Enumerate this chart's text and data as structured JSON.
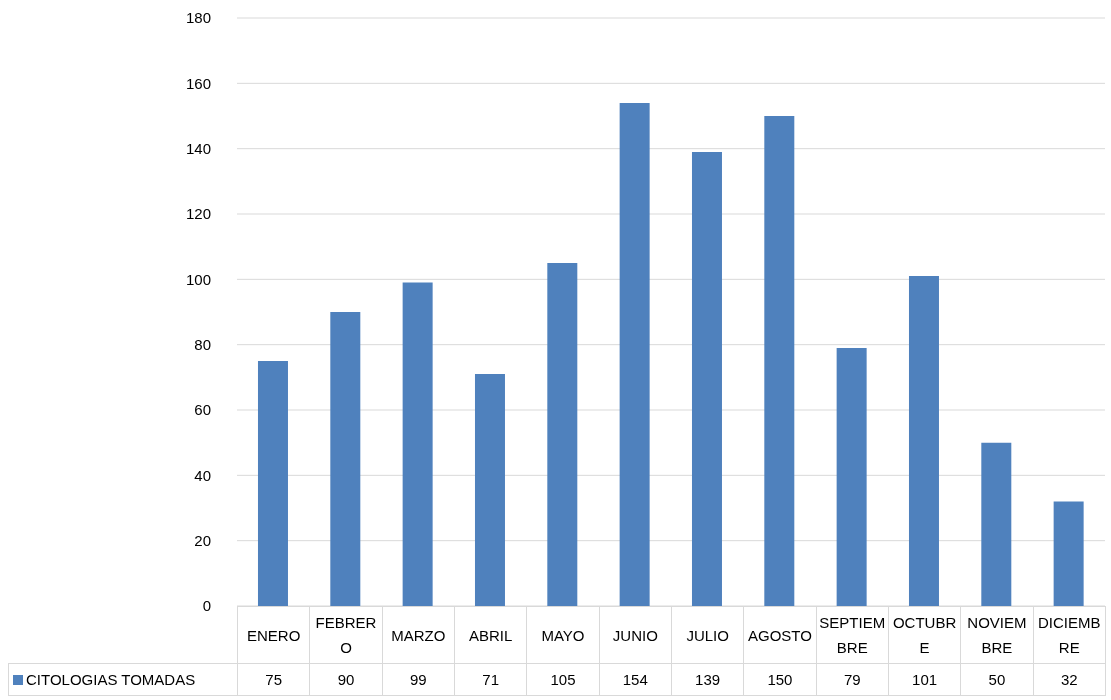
{
  "chart_data": {
    "type": "bar",
    "categories": [
      "ENERO",
      "FEBRERO",
      "MARZO",
      "ABRIL",
      "MAYO",
      "JUNIO",
      "JULIO",
      "AGOSTO",
      "SEPTIEMBRE",
      "OCTUBRE",
      "NOVIEMBRE",
      "DICIEMBRE"
    ],
    "series": [
      {
        "name": "CITOLOGIAS TOMADAS",
        "color": "#4f81bd",
        "values": [
          75,
          90,
          99,
          71,
          105,
          154,
          139,
          150,
          79,
          101,
          50,
          32
        ]
      }
    ],
    "ylim": [
      0,
      180
    ],
    "yticks": [
      0,
      20,
      40,
      60,
      80,
      100,
      120,
      140,
      160,
      180
    ],
    "grid": "y",
    "legend": "bottom",
    "data_labels": true
  }
}
